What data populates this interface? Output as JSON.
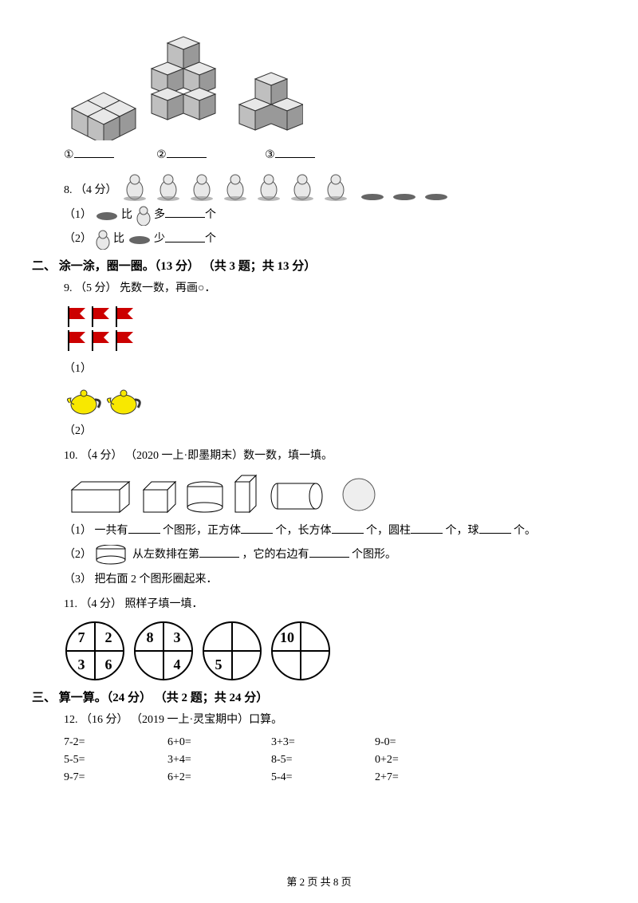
{
  "q7": {
    "labels": [
      "①",
      "②",
      "③"
    ]
  },
  "q8": {
    "prefix": "8. （4 分）",
    "sub1_pre": "（1）",
    "sub1_mid": "比",
    "sub1_suf1": "多",
    "sub1_suf2": "个",
    "sub2_pre": "（2）",
    "sub2_mid": "比",
    "sub2_suf1": "少",
    "sub2_suf2": "个"
  },
  "section2": {
    "title": "二、 涂一涂，圈一圈。（13 分） （共 3 题；共 13 分）"
  },
  "q9": {
    "text": "9. （5 分） 先数一数，再画○．",
    "sub1": "（1）",
    "sub2": "（2）"
  },
  "q10": {
    "text": "10. （4 分） （2020 一上·即墨期末）数一数，填一填。",
    "sub1_a": "（1） 一共有",
    "sub1_b": "个图形，正方体",
    "sub1_c": "个，长方体",
    "sub1_d": "个，圆柱",
    "sub1_e": "个，球",
    "sub1_f": "个。",
    "sub2_a": "（2）",
    "sub2_b": "从左数排在第",
    "sub2_c": "，它的右边有",
    "sub2_d": "个图形。",
    "sub3": "（3） 把右面 2 个图形圈起来．"
  },
  "q11": {
    "text": "11. （4 分） 照样子填一填．",
    "circles": [
      {
        "tl": "7",
        "tr": "2",
        "bl": "3",
        "br": "6"
      },
      {
        "tl": "8",
        "tr": "3",
        "bl": "",
        "br": "4"
      },
      {
        "tl": "",
        "tr": "",
        "bl": "5",
        "br": ""
      },
      {
        "tl": "10",
        "tr": "",
        "bl": "",
        "br": ""
      }
    ]
  },
  "section3": {
    "title": "三、 算一算。（24 分） （共 2 题；共 24 分）"
  },
  "q12": {
    "text": "12. （16 分） （2019 一上·灵宝期中）口算。",
    "rows": [
      [
        "7-2=",
        "6+0=",
        "3+3=",
        "9-0="
      ],
      [
        "5-5=",
        "3+4=",
        "8-5=",
        "0+2="
      ],
      [
        "9-7=",
        "6+2=",
        "5-4=",
        "2+7="
      ]
    ]
  },
  "footer": "第 2 页 共 8 页",
  "colors": {
    "text": "#000000",
    "bg": "#ffffff",
    "flag": "#cc0000",
    "teapot": "#f8e800",
    "cube_light": "#e8e8e8",
    "cube_dark": "#888888"
  }
}
